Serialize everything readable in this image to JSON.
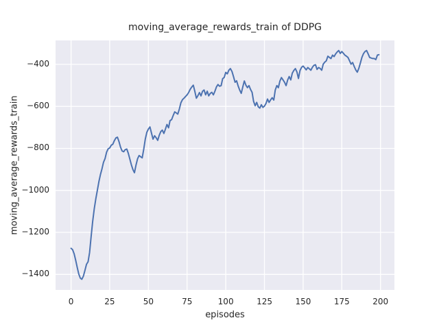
{
  "chart_data": {
    "type": "line",
    "title": "moving_average_rewards_train of DDPG",
    "xlabel": "episodes",
    "ylabel": "moving_average_rewards_train",
    "series_name": "moving_average_rewards_train",
    "x_start": 0,
    "x_step": 1,
    "values": [
      -1276,
      -1282,
      -1302,
      -1332,
      -1367,
      -1398,
      -1418,
      -1423,
      -1408,
      -1380,
      -1352,
      -1340,
      -1296,
      -1218,
      -1148,
      -1088,
      -1042,
      -1000,
      -958,
      -925,
      -897,
      -866,
      -848,
      -818,
      -802,
      -798,
      -785,
      -780,
      -763,
      -750,
      -747,
      -768,
      -794,
      -812,
      -816,
      -806,
      -803,
      -823,
      -851,
      -878,
      -901,
      -916,
      -879,
      -849,
      -834,
      -840,
      -845,
      -803,
      -756,
      -723,
      -708,
      -698,
      -728,
      -756,
      -740,
      -749,
      -762,
      -738,
      -720,
      -713,
      -729,
      -708,
      -686,
      -702,
      -668,
      -663,
      -644,
      -626,
      -631,
      -637,
      -612,
      -583,
      -568,
      -561,
      -553,
      -545,
      -534,
      -519,
      -508,
      -499,
      -528,
      -561,
      -549,
      -534,
      -550,
      -528,
      -522,
      -545,
      -528,
      -550,
      -538,
      -533,
      -545,
      -528,
      -507,
      -496,
      -504,
      -501,
      -468,
      -462,
      -438,
      -445,
      -428,
      -420,
      -434,
      -458,
      -485,
      -478,
      -503,
      -522,
      -538,
      -508,
      -479,
      -499,
      -511,
      -501,
      -519,
      -533,
      -576,
      -597,
      -581,
      -602,
      -608,
      -592,
      -605,
      -599,
      -586,
      -565,
      -581,
      -569,
      -559,
      -570,
      -522,
      -501,
      -511,
      -479,
      -463,
      -474,
      -485,
      -501,
      -474,
      -458,
      -474,
      -442,
      -429,
      -420,
      -436,
      -467,
      -429,
      -414,
      -408,
      -417,
      -426,
      -415,
      -421,
      -428,
      -414,
      -404,
      -402,
      -424,
      -415,
      -419,
      -428,
      -399,
      -389,
      -383,
      -361,
      -367,
      -372,
      -356,
      -363,
      -350,
      -341,
      -334,
      -348,
      -339,
      -347,
      -356,
      -361,
      -367,
      -383,
      -399,
      -391,
      -410,
      -426,
      -437,
      -419,
      -393,
      -367,
      -349,
      -339,
      -334,
      -350,
      -367,
      -370,
      -372,
      -372,
      -377,
      -356,
      -354
    ],
    "xlim": [
      -10,
      209
    ],
    "ylim": [
      -1474,
      -286
    ],
    "xticks": [
      0,
      25,
      50,
      75,
      100,
      125,
      150,
      175,
      200
    ],
    "yticks": [
      -400,
      -600,
      -800,
      -1000,
      -1200,
      -1400
    ],
    "grid": true,
    "legend": "none",
    "line_color": "#4C72B0",
    "plot_bg_color": "#EAEAF2",
    "grid_color": "#FFFFFF",
    "text_color": "#262626",
    "figure_bg_color": "#FFFFFF"
  }
}
